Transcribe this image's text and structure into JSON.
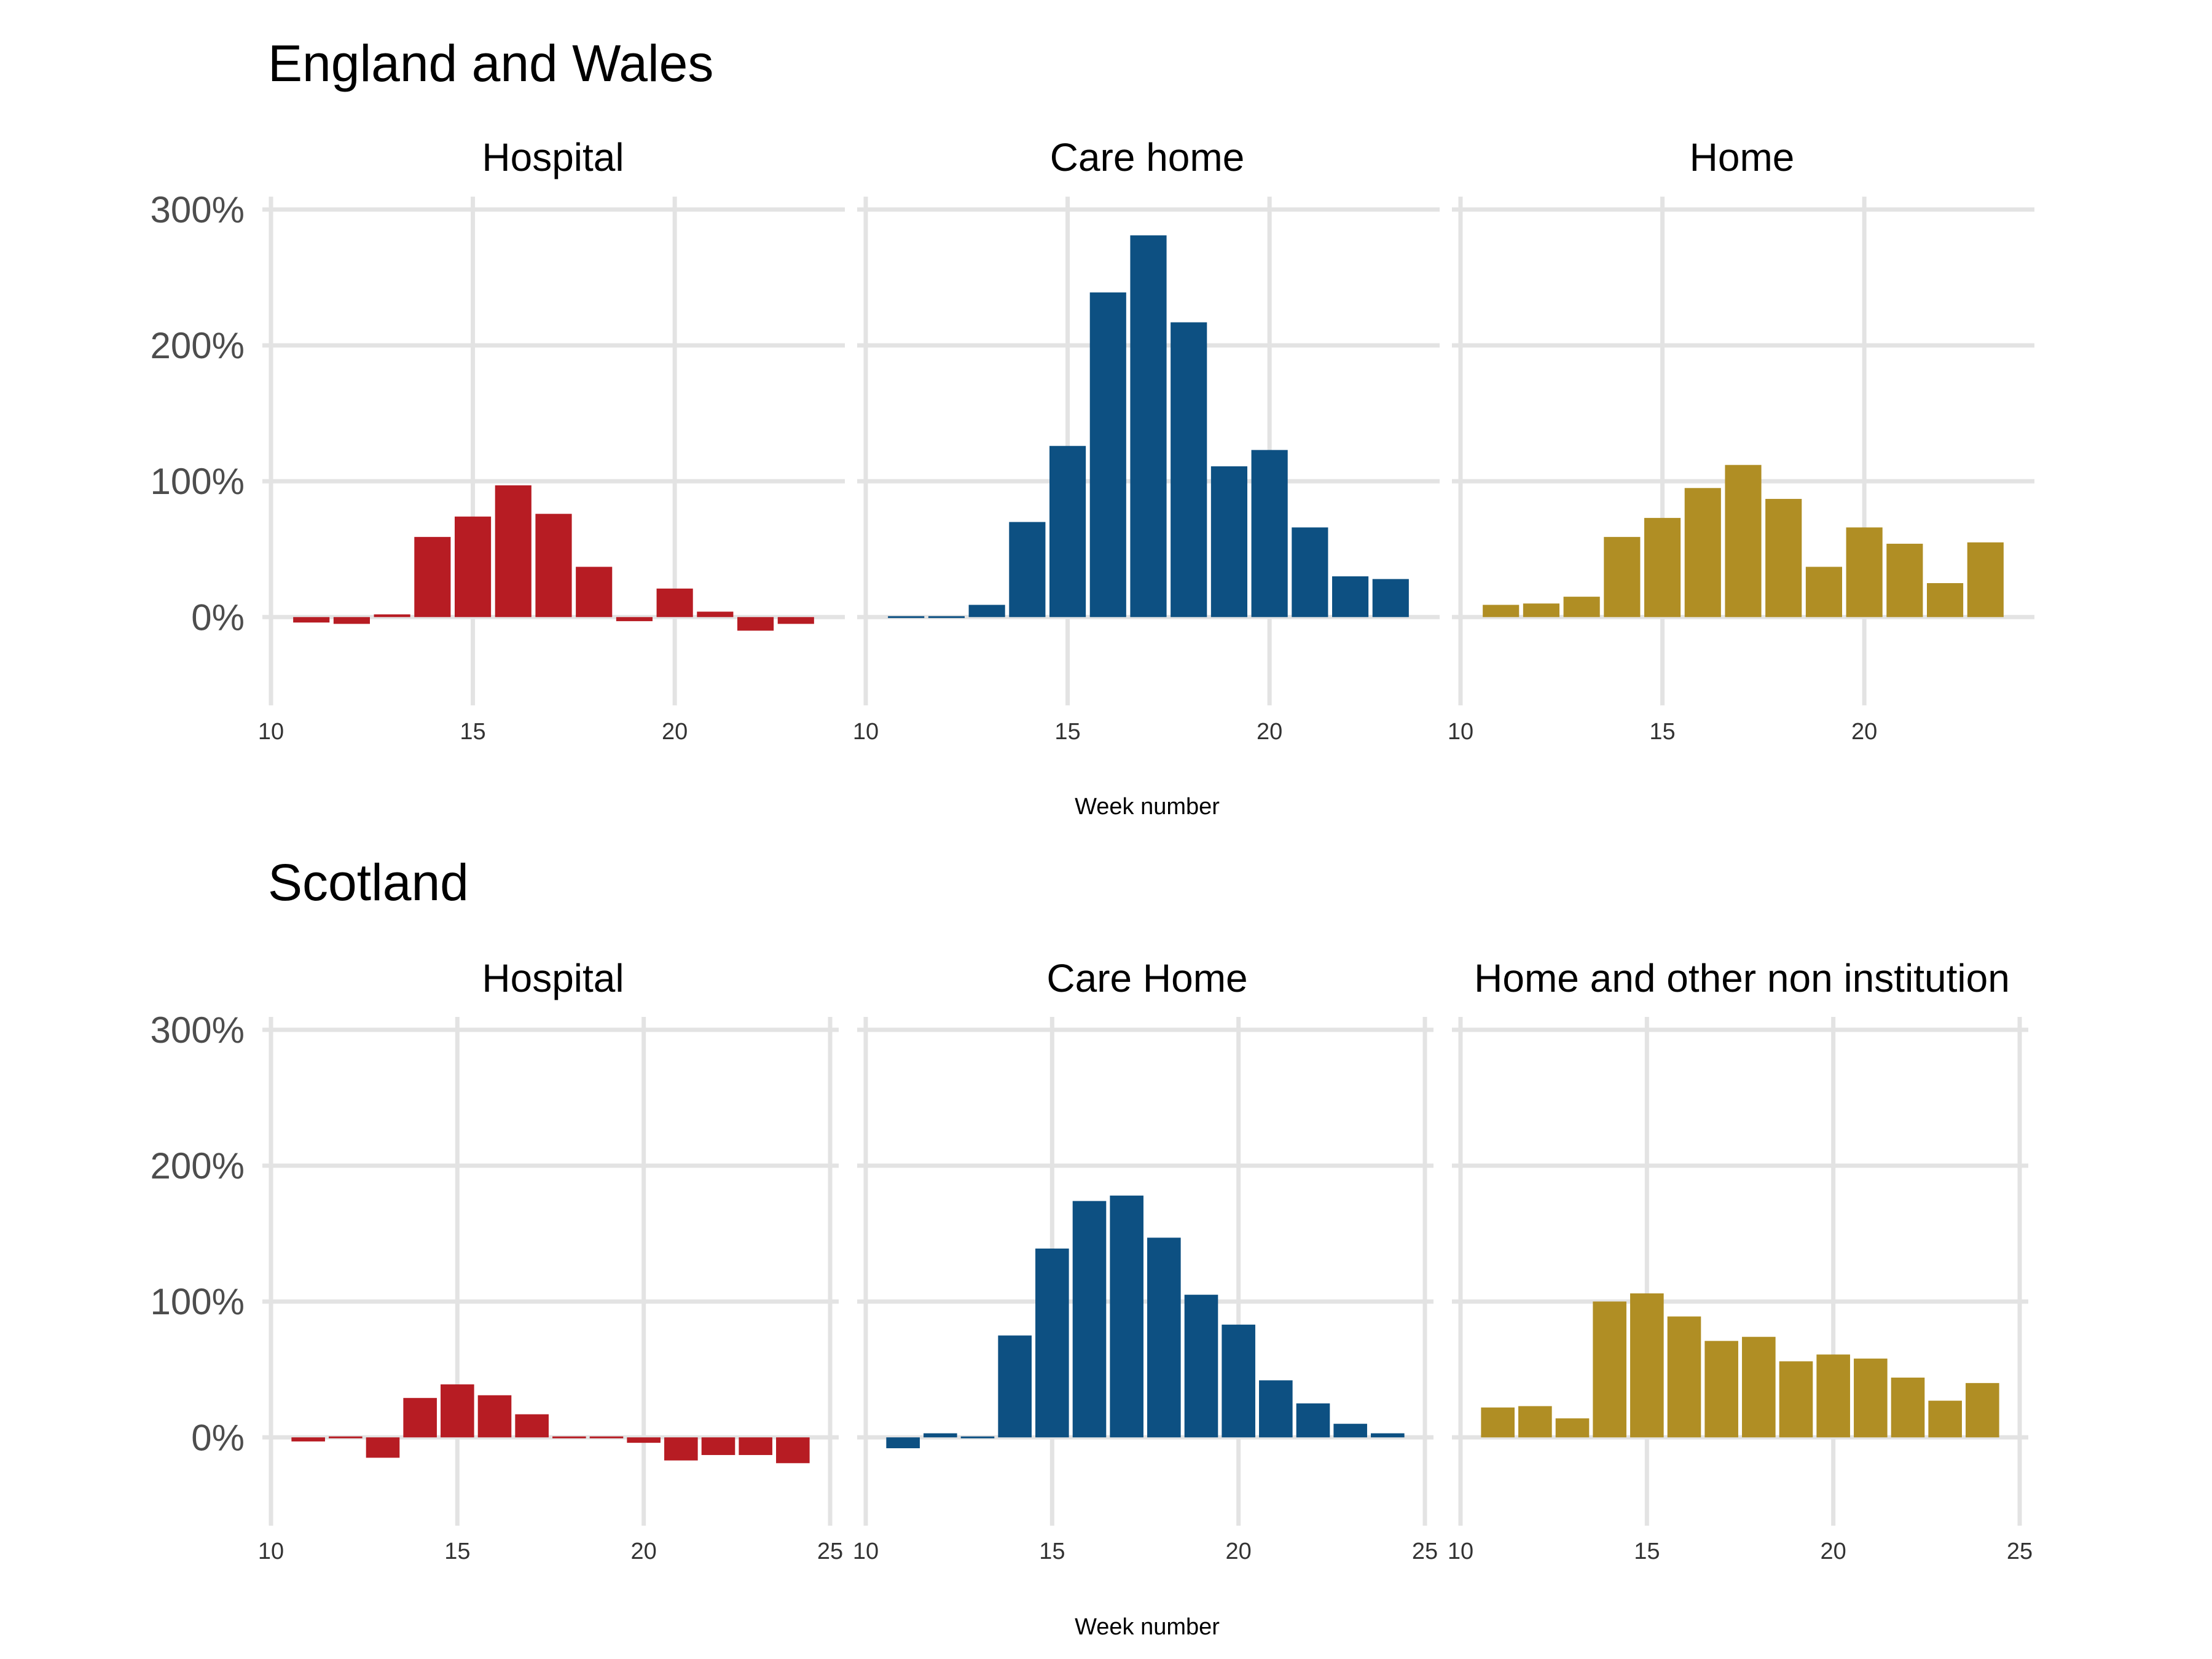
{
  "chart_data": [
    {
      "type": "bar",
      "title": "England and Wales",
      "xlabel": "Week number",
      "x_ticks": [
        "10",
        "15",
        "20"
      ],
      "xlim": [
        10,
        24
      ],
      "y_ticks": [
        "300%",
        "200%",
        "100%",
        "0%"
      ],
      "ylim": [
        -0.65,
        3.05
      ],
      "grid": true,
      "panels": [
        {
          "name": "Hospital",
          "color": "#b71c23",
          "x": [
            11,
            12,
            13,
            14,
            15,
            16,
            17,
            18,
            19,
            20,
            21,
            22,
            23
          ],
          "values": [
            -0.04,
            -0.05,
            0.02,
            0.59,
            0.74,
            0.97,
            0.76,
            0.37,
            -0.03,
            0.21,
            0.04,
            -0.1,
            -0.05
          ]
        },
        {
          "name": "Care home",
          "color": "#0d5082",
          "x": [
            11,
            12,
            13,
            14,
            15,
            16,
            17,
            18,
            19,
            20,
            21,
            22,
            23
          ],
          "values": [
            0.01,
            0.0,
            0.09,
            0.7,
            1.26,
            2.39,
            2.81,
            2.17,
            1.11,
            1.23,
            0.66,
            0.3,
            0.28
          ]
        },
        {
          "name": "Home",
          "color": "#b08e24",
          "x": [
            11,
            12,
            13,
            14,
            15,
            16,
            17,
            18,
            19,
            20,
            21,
            22,
            23
          ],
          "values": [
            0.09,
            0.1,
            0.15,
            0.59,
            0.73,
            0.95,
            1.12,
            0.87,
            0.37,
            0.66,
            0.54,
            0.25,
            0.55
          ]
        }
      ]
    },
    {
      "type": "bar",
      "title": "Scotland",
      "xlabel": "Week number",
      "x_ticks": [
        "10",
        "15",
        "20",
        "25"
      ],
      "xlim": [
        10,
        25
      ],
      "y_ticks": [
        "300%",
        "200%",
        "100%",
        "0%"
      ],
      "ylim": [
        -0.65,
        3.05
      ],
      "grid": true,
      "panels": [
        {
          "name": "Hospital",
          "color": "#b71c23",
          "x": [
            11,
            12,
            13,
            14,
            15,
            16,
            17,
            18,
            19,
            20,
            21,
            22,
            23,
            24
          ],
          "values": [
            -0.03,
            -0.01,
            -0.15,
            0.29,
            0.39,
            0.31,
            0.17,
            0.0,
            0.0,
            -0.04,
            -0.17,
            -0.13,
            -0.13,
            -0.19
          ]
        },
        {
          "name": "Care Home",
          "color": "#0d5082",
          "x": [
            11,
            12,
            13,
            14,
            15,
            16,
            17,
            18,
            19,
            20,
            21,
            22,
            23,
            24
          ],
          "values": [
            -0.08,
            0.03,
            0.01,
            0.75,
            1.39,
            1.74,
            1.78,
            1.47,
            1.05,
            0.83,
            0.42,
            0.25,
            0.1,
            0.03
          ]
        },
        {
          "name": "Home and other non institution",
          "color": "#b08e24",
          "x": [
            11,
            12,
            13,
            14,
            15,
            16,
            17,
            18,
            19,
            20,
            21,
            22,
            23,
            24
          ],
          "values": [
            0.22,
            0.23,
            0.14,
            1.0,
            1.06,
            0.89,
            0.71,
            0.74,
            0.56,
            0.61,
            0.58,
            0.44,
            0.27,
            0.4
          ]
        }
      ]
    }
  ]
}
